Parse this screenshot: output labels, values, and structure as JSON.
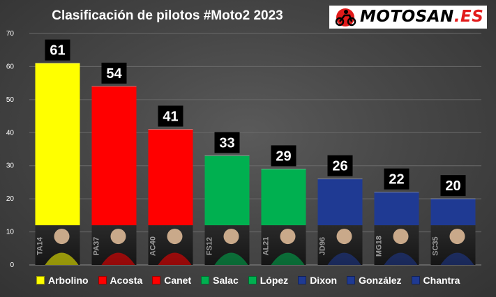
{
  "chart_data": {
    "type": "bar",
    "title": "Clasificación de pilotos #Moto2 2023",
    "categories": [
      "Arbolino",
      "Acosta",
      "Canet",
      "Salac",
      "López",
      "Dixon",
      "González",
      "Chantra"
    ],
    "values": [
      61,
      54,
      41,
      33,
      29,
      26,
      22,
      20
    ],
    "rider_codes": [
      "TA14",
      "PA37",
      "AC40",
      "FS12",
      "AL21",
      "JD96",
      "MG18",
      "SC35"
    ],
    "colors": [
      "#ffff00",
      "#ff0000",
      "#ff0000",
      "#00b050",
      "#00b050",
      "#1f3a93",
      "#1f3a93",
      "#1f3a93"
    ],
    "ylim": [
      0,
      70
    ],
    "yticks": [
      0,
      10,
      20,
      30,
      40,
      50,
      60,
      70
    ],
    "xlabel": "",
    "ylabel": "",
    "grid": true,
    "legend_position": "bottom"
  },
  "branding": {
    "logo_main": "MOTOSAN",
    "logo_suffix": ".ES"
  }
}
